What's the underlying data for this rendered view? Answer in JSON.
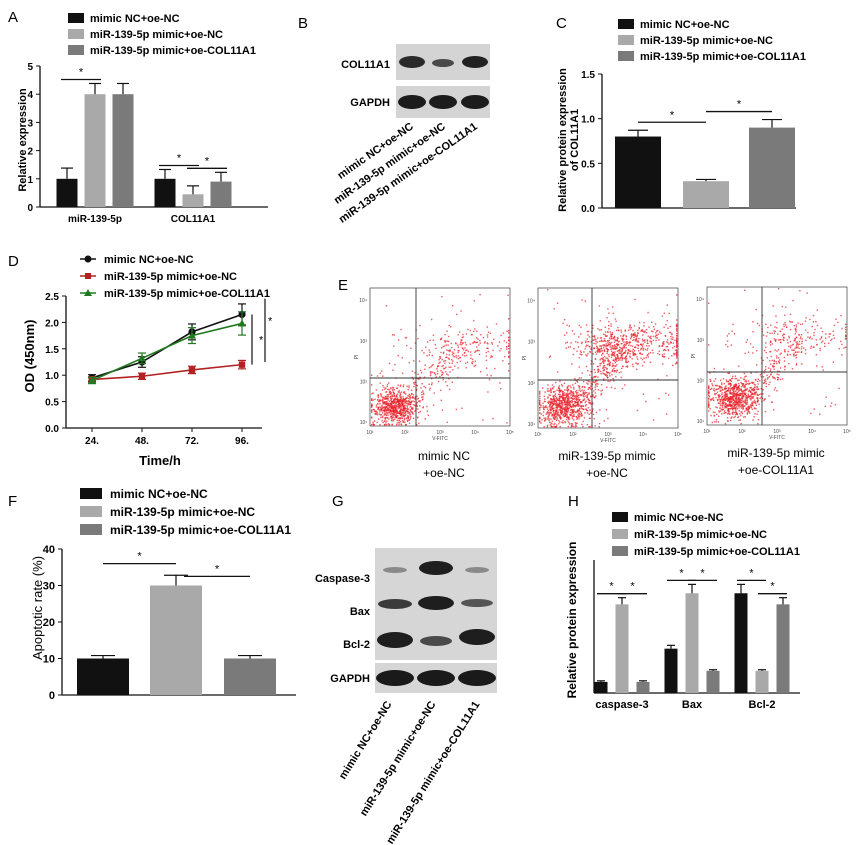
{
  "colors": {
    "black": "#111111",
    "light_gray": "#a9a9a9",
    "dark_gray": "#7a7a7a",
    "line_black": "#111111",
    "line_red": "#b22222",
    "line_green": "#1f7a1f",
    "flow_dot": "#e8242c"
  },
  "legend3": [
    "mimic NC+oe-NC",
    "miR-139-5p mimic+oe-NC",
    "miR-139-5p mimic+oe-COL11A1"
  ],
  "panels": {
    "A": {
      "label": "A"
    },
    "B": {
      "label": "B",
      "bands": [
        "COL11A1",
        "GAPDH"
      ],
      "lanes": [
        "mimic NC+oe-NC",
        "miR-139-5p mimic+oe-NC",
        "miR-139-5p mimic+oe-COL11A1"
      ]
    },
    "C": {
      "label": "C"
    },
    "D": {
      "label": "D"
    },
    "E": {
      "label": "E",
      "captions": [
        [
          "mimic NC",
          "+oe-NC"
        ],
        [
          "miR-139-5p mimic",
          "+oe-NC"
        ],
        [
          "miR-139-5p mimic",
          "+oe-COL11A1"
        ]
      ],
      "xaxis": "V-FITC",
      "yaxis": "PI",
      "ticks": [
        "10¹",
        "10²",
        "10³",
        "10⁴",
        "10⁵"
      ]
    },
    "F": {
      "label": "F"
    },
    "G": {
      "label": "G",
      "bands": [
        "Caspase-3",
        "Bax",
        "Bcl-2",
        "GAPDH"
      ],
      "lanes": [
        "mimic NC+oe-NC",
        "miR-139-5p mimic+oe-NC",
        "miR-139-5p mimic+oe-COL11A1"
      ]
    },
    "H": {
      "label": "H"
    }
  },
  "chart_data": [
    {
      "id": "A",
      "type": "bar",
      "title": "",
      "xlabel": "",
      "ylabel": "Relative expression",
      "categories": [
        "miR-139-5p",
        "COL11A1"
      ],
      "ylim": [
        0,
        5
      ],
      "yticks": [
        0,
        1,
        2,
        3,
        4,
        5
      ],
      "series": [
        {
          "name": "mimic NC+oe-NC",
          "values": [
            1.0,
            1.0
          ],
          "errors": [
            0.38,
            0.33
          ]
        },
        {
          "name": "miR-139-5p mimic+oe-NC",
          "values": [
            4.0,
            0.45
          ],
          "errors": [
            0.38,
            0.3
          ]
        },
        {
          "name": "miR-139-5p mimic+oe-COL11A1",
          "values": [
            4.0,
            0.9
          ],
          "errors": [
            0.38,
            0.33
          ]
        }
      ],
      "significance": [
        {
          "group": 0,
          "from": 0,
          "to": 1,
          "label": "*"
        },
        {
          "group": 1,
          "from": 0,
          "to": 1,
          "label": "*"
        },
        {
          "group": 1,
          "from": 1,
          "to": 2,
          "label": "*"
        }
      ]
    },
    {
      "id": "C",
      "type": "bar",
      "title": "",
      "xlabel": "",
      "ylabel": [
        "Relative protein expression",
        "of COL11A1"
      ],
      "categories": [
        "mimic NC+oe-NC",
        "miR-139-5p mimic+oe-NC",
        "miR-139-5p mimic+oe-COL11A1"
      ],
      "ylim": [
        0,
        1.5
      ],
      "yticks": [
        "0.0",
        "0.5",
        "1.0",
        "1.5"
      ],
      "values": [
        0.8,
        0.3,
        0.9
      ],
      "errors": [
        0.07,
        0.02,
        0.09
      ],
      "significance": [
        {
          "from": 0,
          "to": 1,
          "label": "*"
        },
        {
          "from": 1,
          "to": 2,
          "label": "*"
        }
      ]
    },
    {
      "id": "D",
      "type": "line",
      "xlabel": "Time/h",
      "ylabel": "OD (450nm)",
      "x": [
        24,
        48,
        72,
        96
      ],
      "xticklabels": [
        "24.",
        "48.",
        "72.",
        "96."
      ],
      "ylim": [
        0.0,
        2.5
      ],
      "yticks": [
        "0.0",
        "0.5",
        "1.0",
        "1.5",
        "2.0",
        "2.5"
      ],
      "series": [
        {
          "name": "mimic NC+oe-NC",
          "values": [
            0.95,
            1.25,
            1.82,
            2.15
          ],
          "errors": [
            0.06,
            0.1,
            0.15,
            0.2
          ],
          "marker": "circle"
        },
        {
          "name": "miR-139-5p mimic+oe-NC",
          "values": [
            0.92,
            0.98,
            1.1,
            1.2
          ],
          "errors": [
            0.05,
            0.06,
            0.07,
            0.08
          ],
          "marker": "square"
        },
        {
          "name": "miR-139-5p mimic+oe-COL11A1",
          "values": [
            0.9,
            1.32,
            1.75,
            1.98
          ],
          "errors": [
            0.06,
            0.1,
            0.15,
            0.22
          ],
          "marker": "triangle"
        }
      ],
      "significance": [
        "*",
        "*"
      ]
    },
    {
      "id": "F",
      "type": "bar",
      "xlabel": "",
      "ylabel": "Apoptotic rate (%)",
      "categories": [
        "mimic NC+oe-NC",
        "miR-139-5p mimic+oe-NC",
        "miR-139-5p mimic+oe-COL11A1"
      ],
      "ylim": [
        0,
        40
      ],
      "yticks": [
        0,
        10,
        20,
        30,
        40
      ],
      "values": [
        10,
        30,
        10
      ],
      "errors": [
        0.8,
        2.8,
        0.8
      ],
      "significance": [
        {
          "from": 0,
          "to": 1,
          "label": "*"
        },
        {
          "from": 1,
          "to": 2,
          "label": "*"
        }
      ]
    },
    {
      "id": "H",
      "type": "bar",
      "xlabel": "",
      "ylabel": "Relative protein expression",
      "categories": [
        "caspase-3",
        "Bax",
        "Bcl-2"
      ],
      "ylim": [
        0,
        1.2
      ],
      "series": [
        {
          "name": "mimic NC+oe-NC",
          "values": [
            0.1,
            0.4,
            0.9
          ],
          "errors": [
            0.01,
            0.03,
            0.08
          ]
        },
        {
          "name": "miR-139-5p mimic+oe-NC",
          "values": [
            0.8,
            0.9,
            0.2
          ],
          "errors": [
            0.06,
            0.08,
            0.01
          ]
        },
        {
          "name": "miR-139-5p mimic+oe-COL11A1",
          "values": [
            0.1,
            0.2,
            0.8
          ],
          "errors": [
            0.01,
            0.01,
            0.06
          ]
        }
      ],
      "significance": [
        {
          "group": 0,
          "from": 0,
          "to": 1,
          "label": "*"
        },
        {
          "group": 0,
          "from": 1,
          "to": 2,
          "label": "*"
        },
        {
          "group": 1,
          "from": 0,
          "to": 1,
          "label": "*"
        },
        {
          "group": 1,
          "from": 1,
          "to": 2,
          "label": "*"
        },
        {
          "group": 2,
          "from": 0,
          "to": 1,
          "label": "*"
        },
        {
          "group": 2,
          "from": 1,
          "to": 2,
          "label": "*"
        }
      ]
    }
  ]
}
